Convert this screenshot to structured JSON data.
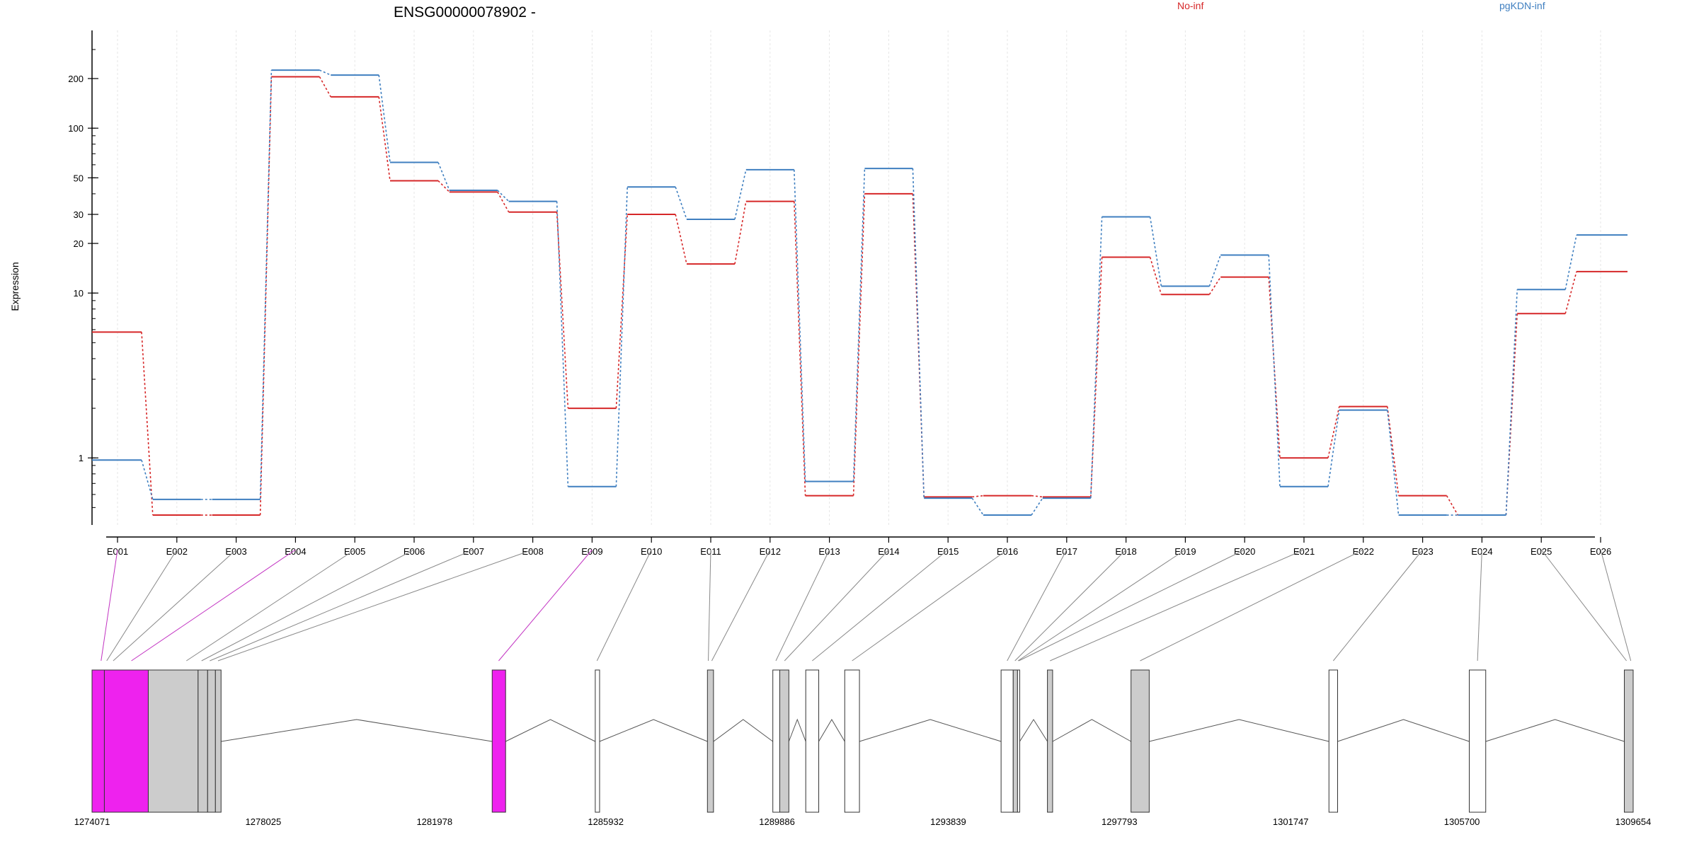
{
  "chart_data": {
    "type": "line",
    "title": "ENSG00000078902 -",
    "ylabel": "Expression",
    "yscale": "log",
    "ylim": [
      0.42,
      300
    ],
    "yticks": [
      1,
      10,
      20,
      30,
      50,
      100,
      200
    ],
    "grid": "vertical dotted lines at each exon",
    "legend_position": "top",
    "categories": [
      "E001",
      "E002",
      "E003",
      "E004",
      "E005",
      "E006",
      "E007",
      "E008",
      "E009",
      "E010",
      "E011",
      "E012",
      "E013",
      "E014",
      "E015",
      "E016",
      "E017",
      "E018",
      "E019",
      "E020",
      "E021",
      "E022",
      "E023",
      "E024",
      "E025",
      "E026"
    ],
    "series": [
      {
        "name": "No-inf",
        "color": "#d62728",
        "values": [
          5.8,
          0.45,
          0.45,
          205,
          155,
          48,
          41,
          31,
          2.0,
          30,
          15,
          36,
          0.59,
          40,
          0.58,
          0.59,
          0.58,
          16.5,
          9.8,
          12.5,
          1.0,
          2.05,
          0.59,
          0.45,
          7.5,
          13.5
        ]
      },
      {
        "name": "pgKDN-inf",
        "color": "#3f7fc0",
        "values": [
          0.97,
          0.56,
          0.56,
          225,
          210,
          62,
          42,
          36,
          0.67,
          44,
          28,
          56,
          0.72,
          57,
          0.57,
          0.45,
          0.57,
          29,
          11,
          17,
          0.67,
          1.95,
          0.45,
          0.45,
          10.5,
          22.5
        ]
      }
    ],
    "genome": {
      "coordinate_ticks": [
        "1274071",
        "1278025",
        "1281978",
        "1285932",
        "1289886",
        "1293839",
        "1297793",
        "1301747",
        "1305700",
        "1309654"
      ],
      "range": [
        1274071,
        1309654
      ],
      "exons": [
        {
          "start": 1274071,
          "end": 1274356,
          "fill": "#ee22ee"
        },
        {
          "start": 1274356,
          "end": 1275370,
          "fill": "#ee22ee"
        },
        {
          "start": 1275370,
          "end": 1276520,
          "fill": "#cccccc"
        },
        {
          "start": 1276520,
          "end": 1276740,
          "fill": "#cccccc"
        },
        {
          "start": 1276740,
          "end": 1276920,
          "fill": "#cccccc"
        },
        {
          "start": 1276920,
          "end": 1277050,
          "fill": "#cccccc"
        },
        {
          "start": 1283310,
          "end": 1283620,
          "fill": "#ee22ee"
        },
        {
          "start": 1285690,
          "end": 1285790,
          "fill": "#ffffff"
        },
        {
          "start": 1288280,
          "end": 1288420,
          "fill": "#cccccc"
        },
        {
          "start": 1289790,
          "end": 1289950,
          "fill": "#ffffff"
        },
        {
          "start": 1289950,
          "end": 1290160,
          "fill": "#cccccc"
        },
        {
          "start": 1290550,
          "end": 1290850,
          "fill": "#ffffff"
        },
        {
          "start": 1291450,
          "end": 1291790,
          "fill": "#ffffff"
        },
        {
          "start": 1295060,
          "end": 1295340,
          "fill": "#ffffff"
        },
        {
          "start": 1295340,
          "end": 1295440,
          "fill": "#cccccc"
        },
        {
          "start": 1295440,
          "end": 1295490,
          "fill": "#ffffff"
        },
        {
          "start": 1296130,
          "end": 1296250,
          "fill": "#cccccc"
        },
        {
          "start": 1298060,
          "end": 1298480,
          "fill": "#cccccc"
        },
        {
          "start": 1302630,
          "end": 1302830,
          "fill": "#ffffff"
        },
        {
          "start": 1305870,
          "end": 1306250,
          "fill": "#ffffff"
        },
        {
          "start": 1309450,
          "end": 1309654,
          "fill": "#cccccc"
        }
      ],
      "links": [
        {
          "exon": "E001",
          "pos": 1274280,
          "color": "#c233c2"
        },
        {
          "exon": "E002",
          "pos": 1274410,
          "color": "#888888"
        },
        {
          "exon": "E003",
          "pos": 1274560,
          "color": "#888888"
        },
        {
          "exon": "E004",
          "pos": 1274980,
          "color": "#c233c2"
        },
        {
          "exon": "E005",
          "pos": 1276250,
          "color": "#888888"
        },
        {
          "exon": "E006",
          "pos": 1276600,
          "color": "#888888"
        },
        {
          "exon": "E007",
          "pos": 1276790,
          "color": "#888888"
        },
        {
          "exon": "E008",
          "pos": 1276980,
          "color": "#888888"
        },
        {
          "exon": "E009",
          "pos": 1283460,
          "color": "#c233c2"
        },
        {
          "exon": "E010",
          "pos": 1285730,
          "color": "#888888"
        },
        {
          "exon": "E011",
          "pos": 1288300,
          "color": "#888888"
        },
        {
          "exon": "E012",
          "pos": 1288380,
          "color": "#888888"
        },
        {
          "exon": "E013",
          "pos": 1289860,
          "color": "#888888"
        },
        {
          "exon": "E014",
          "pos": 1290060,
          "color": "#888888"
        },
        {
          "exon": "E015",
          "pos": 1290700,
          "color": "#888888"
        },
        {
          "exon": "E016",
          "pos": 1291620,
          "color": "#888888"
        },
        {
          "exon": "E017",
          "pos": 1295200,
          "color": "#888888"
        },
        {
          "exon": "E018",
          "pos": 1295380,
          "color": "#888888"
        },
        {
          "exon": "E019",
          "pos": 1295450,
          "color": "#888888"
        },
        {
          "exon": "E020",
          "pos": 1295470,
          "color": "#888888"
        },
        {
          "exon": "E021",
          "pos": 1296190,
          "color": "#888888"
        },
        {
          "exon": "E022",
          "pos": 1298270,
          "color": "#888888"
        },
        {
          "exon": "E023",
          "pos": 1302730,
          "color": "#888888"
        },
        {
          "exon": "E024",
          "pos": 1306060,
          "color": "#888888"
        },
        {
          "exon": "E025",
          "pos": 1309500,
          "color": "#888888"
        },
        {
          "exon": "E026",
          "pos": 1309600,
          "color": "#888888"
        }
      ]
    }
  }
}
